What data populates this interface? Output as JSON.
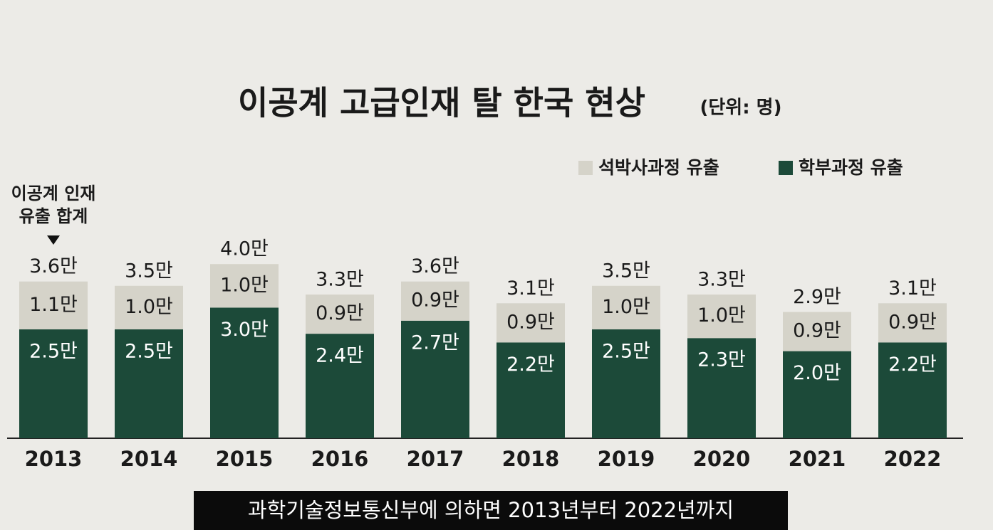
{
  "chart_data": {
    "type": "stacked_bar",
    "title": "이공계 고급인재 탈 한국 현상",
    "unit": "(단위: 명)",
    "categories": [
      "2013",
      "2014",
      "2015",
      "2016",
      "2017",
      "2018",
      "2019",
      "2020",
      "2021",
      "2022"
    ],
    "series": [
      {
        "name": "학부과정 유출",
        "color": "#1c4a39",
        "values": [
          2.5,
          2.5,
          3.0,
          2.4,
          2.7,
          2.2,
          2.5,
          2.3,
          2.0,
          2.2
        ],
        "value_labels": [
          "2.5만",
          "2.5만",
          "3.0만",
          "2.4만",
          "2.7만",
          "2.2만",
          "2.5만",
          "2.3만",
          "2.0만",
          "2.2만"
        ]
      },
      {
        "name": "석박사과정 유출",
        "color": "#d5d3c9",
        "values": [
          1.1,
          1.0,
          1.0,
          0.9,
          0.9,
          0.9,
          1.0,
          1.0,
          0.9,
          0.9
        ],
        "value_labels": [
          "1.1만",
          "1.0만",
          "1.0만",
          "0.9만",
          "0.9만",
          "0.9만",
          "1.0만",
          "1.0만",
          "0.9만",
          "0.9만"
        ]
      }
    ],
    "totals": {
      "values": [
        3.6,
        3.5,
        4.0,
        3.3,
        3.6,
        3.1,
        3.5,
        3.3,
        2.9,
        3.1
      ],
      "value_labels": [
        "3.6만",
        "3.5만",
        "4.0만",
        "3.3만",
        "3.6만",
        "3.1만",
        "3.5만",
        "3.3만",
        "2.9만",
        "3.1만"
      ]
    },
    "annotation": [
      "이공계 인재",
      "유출 합계"
    ],
    "caption": "과학기술정보통신부에 의하면 2013년부터 2022년까지"
  }
}
